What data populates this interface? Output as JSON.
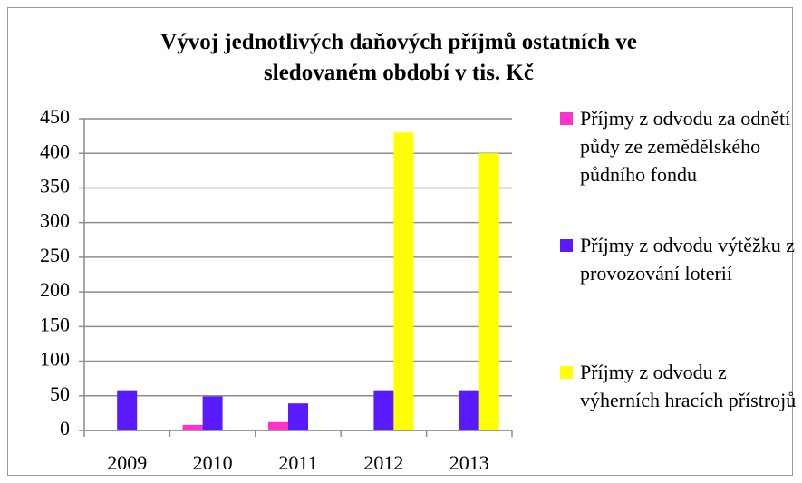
{
  "chart_data": {
    "type": "bar",
    "title": "Vývoj jednotlivých daňových příjmů ostatních ve sledovaném období v tis. Kč",
    "categories": [
      "2009",
      "2010",
      "2011",
      "2012",
      "2013"
    ],
    "series": [
      {
        "name": "Příjmy z odvodu za odnětí půdy ze zemědělského půdního fondu",
        "color": "#ff33cc",
        "values": [
          0,
          8,
          12,
          0,
          0
        ]
      },
      {
        "name": "Příjmy z odvodu výtěžku z provozování loterií",
        "color": "#5a1aff",
        "values": [
          58,
          49,
          39,
          58,
          58
        ]
      },
      {
        "name": "Příjmy z odvodu z výherních hracích přístrojů",
        "color": "#ffff00",
        "values": [
          0,
          0,
          0,
          430,
          400
        ]
      }
    ],
    "ylim": [
      0,
      450
    ],
    "yticks": [
      0,
      50,
      100,
      150,
      200,
      250,
      300,
      350,
      400,
      450
    ],
    "grid": true,
    "legend": "right"
  }
}
